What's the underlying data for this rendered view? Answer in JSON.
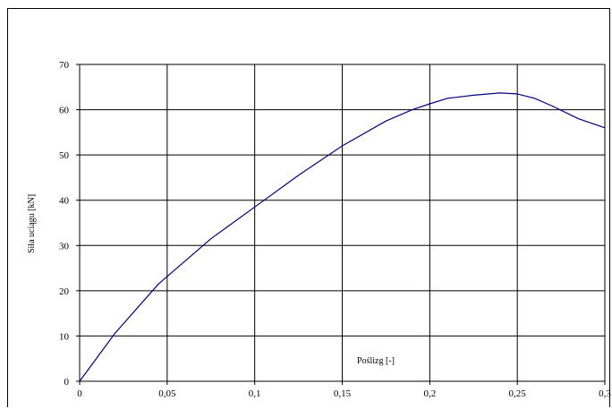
{
  "chart_data": {
    "type": "line",
    "title": "",
    "xlabel": "Poślizg [-]",
    "ylabel": "Siła uciągu [kN]",
    "xlim": [
      0,
      0.3
    ],
    "ylim": [
      0,
      70
    ],
    "x_ticks": [
      "0",
      "0,05",
      "0,1",
      "0,15",
      "0,2",
      "0,25",
      "0,3"
    ],
    "y_ticks": [
      "0",
      "10",
      "20",
      "30",
      "40",
      "50",
      "60",
      "70"
    ],
    "grid": true,
    "legend": "none",
    "series": [
      {
        "color": "#000080",
        "x": [
          0,
          0.02,
          0.045,
          0.075,
          0.1,
          0.125,
          0.15,
          0.175,
          0.19,
          0.2,
          0.21,
          0.225,
          0.24,
          0.25,
          0.26,
          0.27,
          0.285,
          0.3
        ],
        "y": [
          0,
          10.5,
          21.5,
          31.5,
          38.5,
          45.5,
          52,
          57.5,
          60,
          61.3,
          62.5,
          63.2,
          63.7,
          63.5,
          62.5,
          60.8,
          58,
          56
        ]
      }
    ]
  }
}
